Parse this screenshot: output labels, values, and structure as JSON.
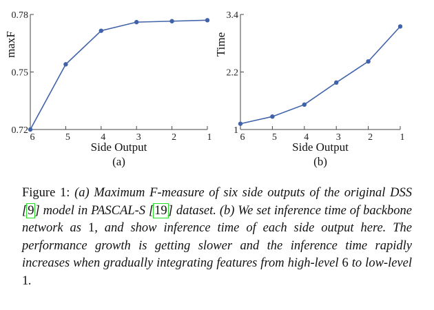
{
  "chart_data": [
    {
      "type": "line",
      "panel_label": "(a)",
      "xlabel": "Side Output",
      "ylabel": "maxF",
      "categories": [
        "6",
        "5",
        "4",
        "3",
        "2",
        "1"
      ],
      "values": [
        0.72,
        0.754,
        0.7715,
        0.776,
        0.7765,
        0.777
      ],
      "ylim": [
        0.72,
        0.78
      ],
      "yticks": [
        0.72,
        0.75,
        0.78
      ],
      "ytick_labels": [
        "0.72",
        "0.75",
        "0.78"
      ],
      "grid": false,
      "color": "#3f62a8"
    },
    {
      "type": "line",
      "panel_label": "(b)",
      "xlabel": "Side Output",
      "ylabel": "Time",
      "categories": [
        "6",
        "5",
        "4",
        "3",
        "2",
        "1"
      ],
      "values": [
        1.12,
        1.27,
        1.52,
        1.98,
        2.42,
        3.15
      ],
      "ylim": [
        1,
        3.4
      ],
      "yticks": [
        1,
        2.2,
        3.4
      ],
      "ytick_labels": [
        "1",
        "2.2",
        "3.4"
      ],
      "grid": false,
      "color": "#3f62a8"
    }
  ],
  "caption": {
    "label": "Figure 1:",
    "part1": "(a) Maximum F-measure of six side outputs of the original DSS [",
    "cite1": "9",
    "part2": "] model in PASCAL-S [",
    "cite2": "19",
    "part3": "] dataset. (b) We set inference time of backbone network as ",
    "num1": "1",
    "part4": ", and show inference time of each side output here. The performance growth is getting slower and the inference time rapidly increases when gradually integrating features from high-level ",
    "num2": "6",
    "part5": " to low-level ",
    "num3": "1",
    "part6": "."
  }
}
